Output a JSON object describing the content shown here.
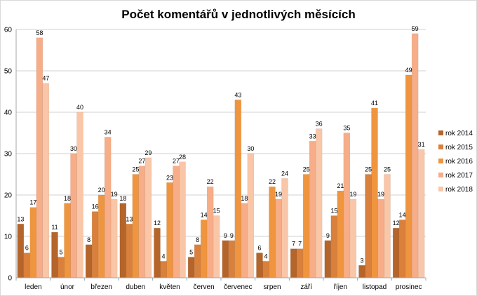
{
  "chart_data": {
    "type": "bar",
    "title": "Počet komentářů v jednotlivých měsících",
    "xlabel": "",
    "ylabel": "",
    "ylim": [
      0,
      60
    ],
    "yticks": [
      0,
      10,
      20,
      30,
      40,
      50,
      60
    ],
    "grid": true,
    "legend_position": "right",
    "categories": [
      "leden",
      "únor",
      "březen",
      "duben",
      "květen",
      "červen",
      "červenec",
      "srpen",
      "září",
      "říjen",
      "listopad",
      "prosinec"
    ],
    "series": [
      {
        "name": "rok 2014",
        "color": "#b5642a",
        "values": [
          13,
          11,
          8,
          18,
          12,
          5,
          9,
          6,
          7,
          9,
          3,
          12
        ]
      },
      {
        "name": "rok 2015",
        "color": "#d9803c",
        "values": [
          6,
          5,
          16,
          13,
          4,
          8,
          9,
          4,
          7,
          15,
          25,
          14
        ]
      },
      {
        "name": "rok 2016",
        "color": "#f0953f",
        "values": [
          17,
          18,
          20,
          25,
          23,
          14,
          43,
          22,
          25,
          21,
          41,
          49
        ]
      },
      {
        "name": "rok 2017",
        "color": "#f6ad88",
        "values": [
          58,
          30,
          34,
          27,
          27,
          22,
          18,
          19,
          33,
          35,
          19,
          59
        ]
      },
      {
        "name": "rok 2018",
        "color": "#f9c6a8",
        "values": [
          47,
          40,
          19,
          29,
          28,
          15,
          30,
          24,
          36,
          19,
          25,
          31
        ]
      }
    ]
  }
}
